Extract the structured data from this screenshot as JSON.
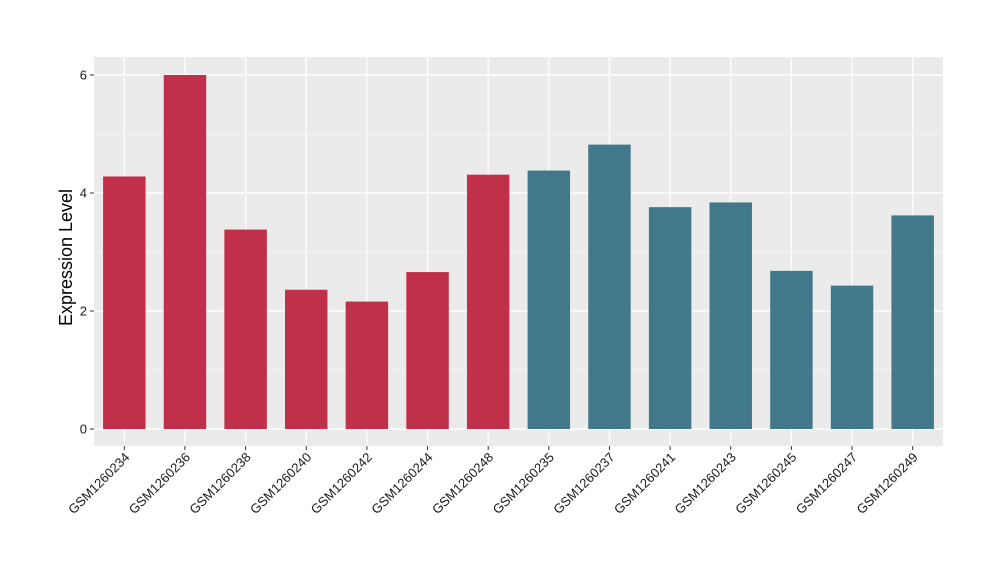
{
  "chart_data": {
    "type": "bar",
    "title": "",
    "xlabel": "",
    "ylabel": "Expression Level",
    "ylim": [
      0,
      6.3
    ],
    "yticks": [
      0,
      2,
      4,
      6
    ],
    "grid": true,
    "legend": "none",
    "background_color": "#ebebeb",
    "gridline_color": "#ffffff",
    "categories": [
      "GSM1260234",
      "GSM1260236",
      "GSM1260238",
      "GSM1260240",
      "GSM1260242",
      "GSM1260244",
      "GSM1260248",
      "GSM1260235",
      "GSM1260237",
      "GSM1260241",
      "GSM1260243",
      "GSM1260245",
      "GSM1260247",
      "GSM1260249"
    ],
    "values": [
      4.28,
      6.0,
      3.38,
      2.36,
      2.16,
      2.66,
      4.31,
      4.38,
      4.82,
      3.76,
      3.84,
      2.68,
      2.43,
      3.62
    ],
    "bar_colors": [
      "#c0304a",
      "#c0304a",
      "#c0304a",
      "#c0304a",
      "#c0304a",
      "#c0304a",
      "#c0304a",
      "#41788a",
      "#41788a",
      "#41788a",
      "#41788a",
      "#41788a",
      "#41788a",
      "#41788a"
    ]
  }
}
